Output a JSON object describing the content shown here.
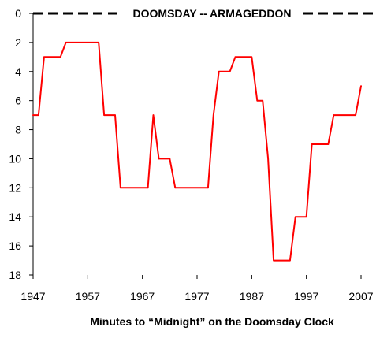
{
  "chart_data": {
    "type": "line",
    "title": "",
    "xlabel": "Minutes to “Midnight” on the Doomsday Clock",
    "ylabel": "",
    "xlim": [
      1947,
      2007
    ],
    "ylim": [
      0,
      18
    ],
    "y_inverted": true,
    "grid": false,
    "legend": "none",
    "x_ticks": [
      1947,
      1957,
      1967,
      1977,
      1987,
      1997,
      2007
    ],
    "y_ticks": [
      0,
      2,
      4,
      6,
      8,
      10,
      12,
      14,
      16,
      18
    ],
    "annotation": {
      "text": "DOOMSDAY -- ARMAGEDDON",
      "y": 0,
      "line_style": "dashed",
      "color": "#000000"
    },
    "series": [
      {
        "color": "#ff0000",
        "points": [
          [
            1947,
            7
          ],
          [
            1948,
            7
          ],
          [
            1949,
            3
          ],
          [
            1952,
            3
          ],
          [
            1953,
            2
          ],
          [
            1959,
            2
          ],
          [
            1960,
            7
          ],
          [
            1962,
            7
          ],
          [
            1963,
            12
          ],
          [
            1968,
            12
          ],
          [
            1969,
            7
          ],
          [
            1970,
            10
          ],
          [
            1972,
            10
          ],
          [
            1973,
            12
          ],
          [
            1979,
            12
          ],
          [
            1980,
            7
          ],
          [
            1981,
            4
          ],
          [
            1983,
            4
          ],
          [
            1984,
            3
          ],
          [
            1987,
            3
          ],
          [
            1988,
            6
          ],
          [
            1989,
            6
          ],
          [
            1990,
            10
          ],
          [
            1991,
            17
          ],
          [
            1994,
            17
          ],
          [
            1995,
            14
          ],
          [
            1997,
            14
          ],
          [
            1998,
            9
          ],
          [
            2001,
            9
          ],
          [
            2002,
            7
          ],
          [
            2006,
            7
          ],
          [
            2007,
            5
          ]
        ]
      }
    ]
  }
}
